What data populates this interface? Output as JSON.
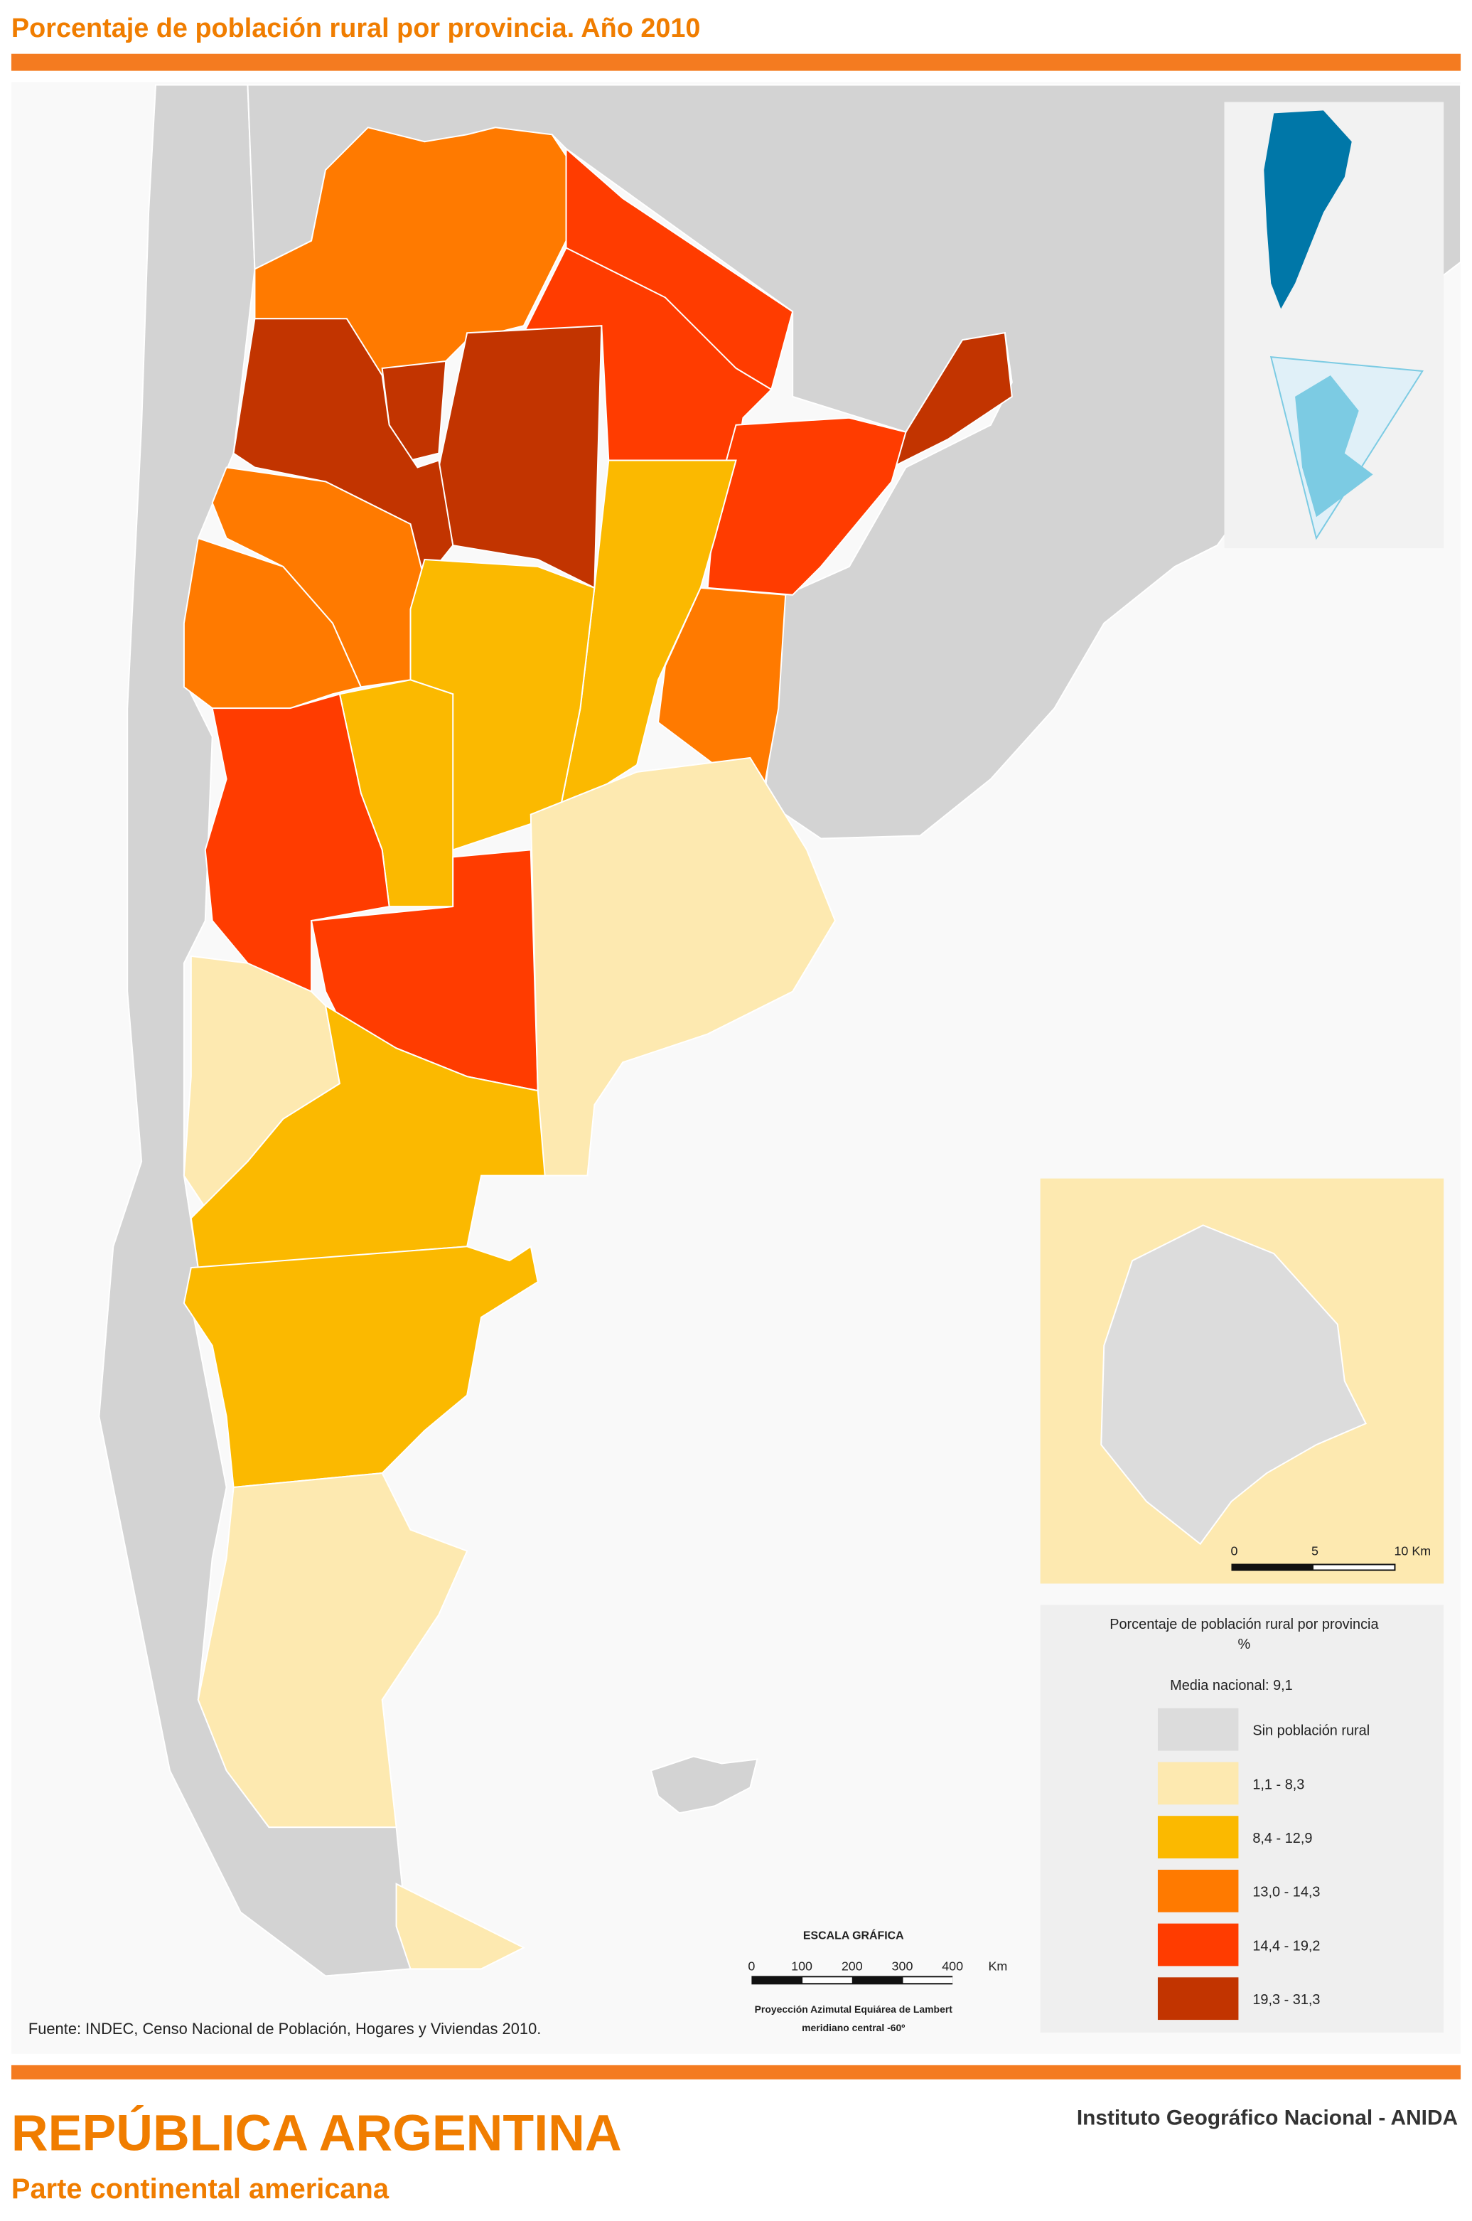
{
  "header": {
    "title": "Porcentaje de población rural por provincia. Año 2010"
  },
  "legend": {
    "title": "Porcentaje de población rural por provincia",
    "unit": "%",
    "note": "Media nacional: 9,1",
    "items": [
      {
        "label": "Sin población rural",
        "color": "#dcdcdc"
      },
      {
        "label": "1,1 - 8,3",
        "color": "#fde9b0"
      },
      {
        "label": "8,4 - 12,9",
        "color": "#fbb900"
      },
      {
        "label": "13,0 - 14,3",
        "color": "#ff7a00"
      },
      {
        "label": "14,4 - 19,2",
        "color": "#ff3c00"
      },
      {
        "label": "19,3 - 31,3",
        "color": "#c23400"
      }
    ]
  },
  "inset_scale": {
    "labels": [
      "0",
      "5",
      "10 Km"
    ]
  },
  "scale": {
    "title": "ESCALA GRÁFICA",
    "ticks": [
      "0",
      "100",
      "200",
      "300",
      "400"
    ],
    "unit": "Km",
    "projection": [
      "Proyección Azimutal Equiárea de Lambert",
      "meridiano central -60º"
    ]
  },
  "source": "Fuente: INDEC, Censo Nacional de Población, Hogares y Viviendas 2010.",
  "footer": {
    "title": "REPÚBLICA ARGENTINA",
    "subtitle": "Parte continental americana",
    "institute": "Instituto Geográfico Nacional - ANIDA"
  }
}
